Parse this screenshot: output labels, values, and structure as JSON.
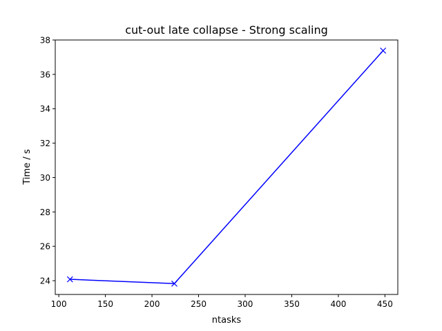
{
  "chart_data": {
    "type": "line",
    "title": "cut-out late collapse - Strong scaling",
    "xlabel": "ntasks",
    "ylabel": "Time / s",
    "xlim": [
      96.2,
      463.8
    ],
    "ylim": [
      23.2,
      38.0
    ],
    "xticks": [
      100,
      150,
      200,
      250,
      300,
      350,
      400,
      450
    ],
    "yticks": [
      24,
      26,
      28,
      30,
      32,
      34,
      36,
      38
    ],
    "grid": false,
    "legend": "none",
    "series": [
      {
        "color": "#0000ff",
        "marker": "x",
        "x": [
          112,
          224,
          448
        ],
        "y": [
          24.08,
          23.83,
          37.38
        ]
      }
    ]
  }
}
